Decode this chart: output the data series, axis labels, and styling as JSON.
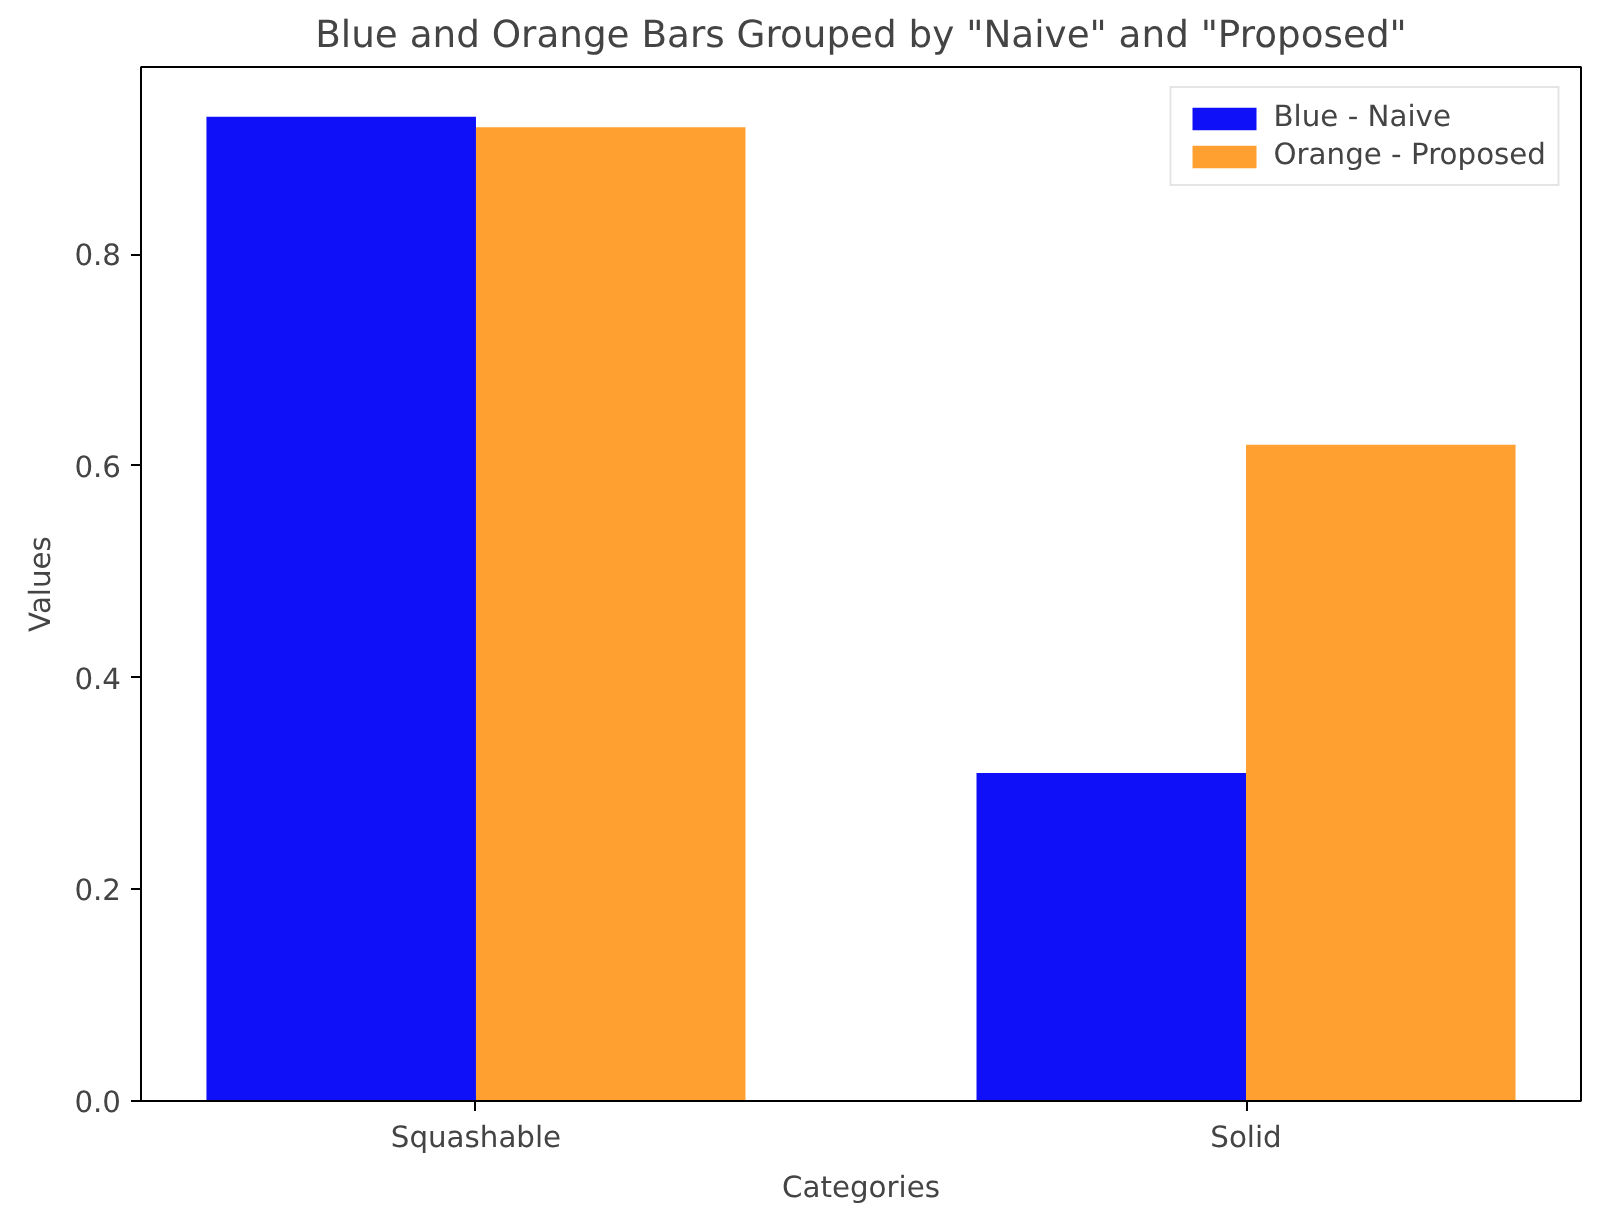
{
  "chart_data": {
    "type": "bar",
    "title": "Blue and Orange Bars Grouped by \"Naive\" and \"Proposed\"",
    "xlabel": "Categories",
    "ylabel": "Values",
    "categories": [
      "Squashable",
      "Solid"
    ],
    "series": [
      {
        "name": "Blue - Naive",
        "color": "#1010f8",
        "values": [
          0.93,
          0.31
        ]
      },
      {
        "name": "Orange - Proposed",
        "color": "#ffa030",
        "values": [
          0.92,
          0.62
        ]
      }
    ],
    "ylim": [
      0,
      0.977
    ],
    "yticks": [
      {
        "value": 0,
        "label": "0.0"
      },
      0.2,
      0.4,
      0.6,
      0.8
    ],
    "grid": false,
    "legend": "top right"
  }
}
